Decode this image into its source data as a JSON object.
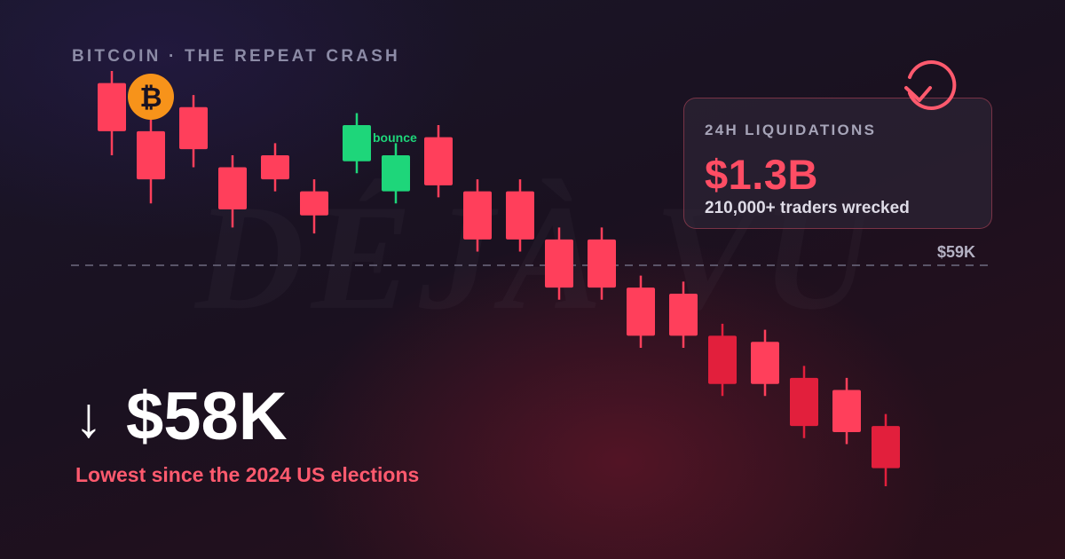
{
  "watermark": "DÉJÀ VU",
  "subtitle": "BITCOIN · THE REPEAT CRASH",
  "coin_icon": "bitcoin-icon",
  "card": {
    "label": "24H LIQUIDATIONS",
    "value": "$1.3B",
    "note": "210,000+ traders wrecked",
    "icon": "refresh-icon"
  },
  "headline": {
    "arrow": "↓",
    "price": "$58K",
    "note": "Lowest since the 2024 US elections"
  },
  "colors": {
    "bear": "#ff3f5b",
    "bear_dark": "#e21f3c",
    "bull": "#1ed67a",
    "accent": "#ff5a6e",
    "coin": "#f7931a"
  },
  "chart_data": {
    "type": "candlestick",
    "reference_line": {
      "label": "$59K"
    },
    "annotation": {
      "label": "bounce"
    },
    "candles": [
      {
        "dir": "down",
        "open": 100,
        "close": 92,
        "high": 102,
        "low": 88
      },
      {
        "dir": "down",
        "open": 92,
        "close": 84,
        "high": 95,
        "low": 80
      },
      {
        "dir": "down",
        "open": 96,
        "close": 89,
        "high": 98,
        "low": 86
      },
      {
        "dir": "down",
        "open": 86,
        "close": 79,
        "high": 88,
        "low": 76
      },
      {
        "dir": "down",
        "open": 88,
        "close": 84,
        "high": 90,
        "low": 82
      },
      {
        "dir": "down",
        "open": 82,
        "close": 78,
        "high": 84,
        "low": 75
      },
      {
        "dir": "up",
        "open": 87,
        "close": 93,
        "high": 95,
        "low": 85
      },
      {
        "dir": "up",
        "open": 82,
        "close": 88,
        "high": 90,
        "low": 80
      },
      {
        "dir": "down",
        "open": 91,
        "close": 83,
        "high": 93,
        "low": 81
      },
      {
        "dir": "down",
        "open": 82,
        "close": 74,
        "high": 84,
        "low": 72
      },
      {
        "dir": "down",
        "open": 82,
        "close": 74,
        "high": 84,
        "low": 72
      },
      {
        "dir": "down",
        "open": 74,
        "close": 66,
        "high": 76,
        "low": 64
      },
      {
        "dir": "down",
        "open": 74,
        "close": 66,
        "high": 76,
        "low": 64
      },
      {
        "dir": "down",
        "open": 66,
        "close": 58,
        "high": 68,
        "low": 56
      },
      {
        "dir": "down",
        "open": 65,
        "close": 58,
        "high": 67,
        "low": 56
      },
      {
        "dir": "down",
        "open": 58,
        "close": 50,
        "high": 60,
        "low": 48
      },
      {
        "dir": "down",
        "open": 57,
        "close": 50,
        "high": 59,
        "low": 48
      },
      {
        "dir": "down",
        "open": 51,
        "close": 43,
        "high": 53,
        "low": 41
      },
      {
        "dir": "down",
        "open": 49,
        "close": 42,
        "high": 51,
        "low": 40
      },
      {
        "dir": "down",
        "open": 43,
        "close": 36,
        "high": 45,
        "low": 33
      }
    ]
  }
}
